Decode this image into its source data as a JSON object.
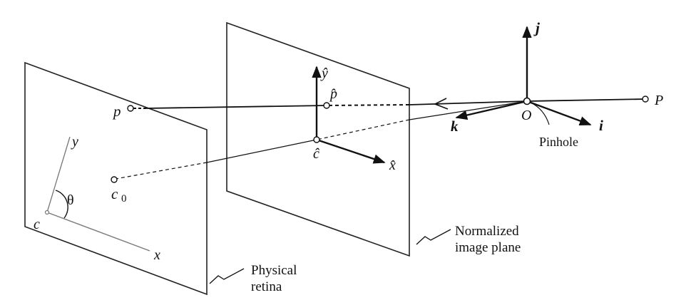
{
  "labels": {
    "P": "P",
    "O": "O",
    "i": "i",
    "j": "j",
    "k": "k",
    "pinhole": "Pinhole",
    "p": "p",
    "p_hat": "p̂",
    "y_hat": "ŷ",
    "x_hat": "x̂",
    "c_hat": "ĉ",
    "c0_c": "c",
    "c0_sub": "0",
    "y": "y",
    "x": "x",
    "c": "c",
    "theta": "θ",
    "normalized_line1": "Normalized",
    "normalized_line2": "image plane",
    "physical_line1": "Physical",
    "physical_line2": "retina"
  }
}
